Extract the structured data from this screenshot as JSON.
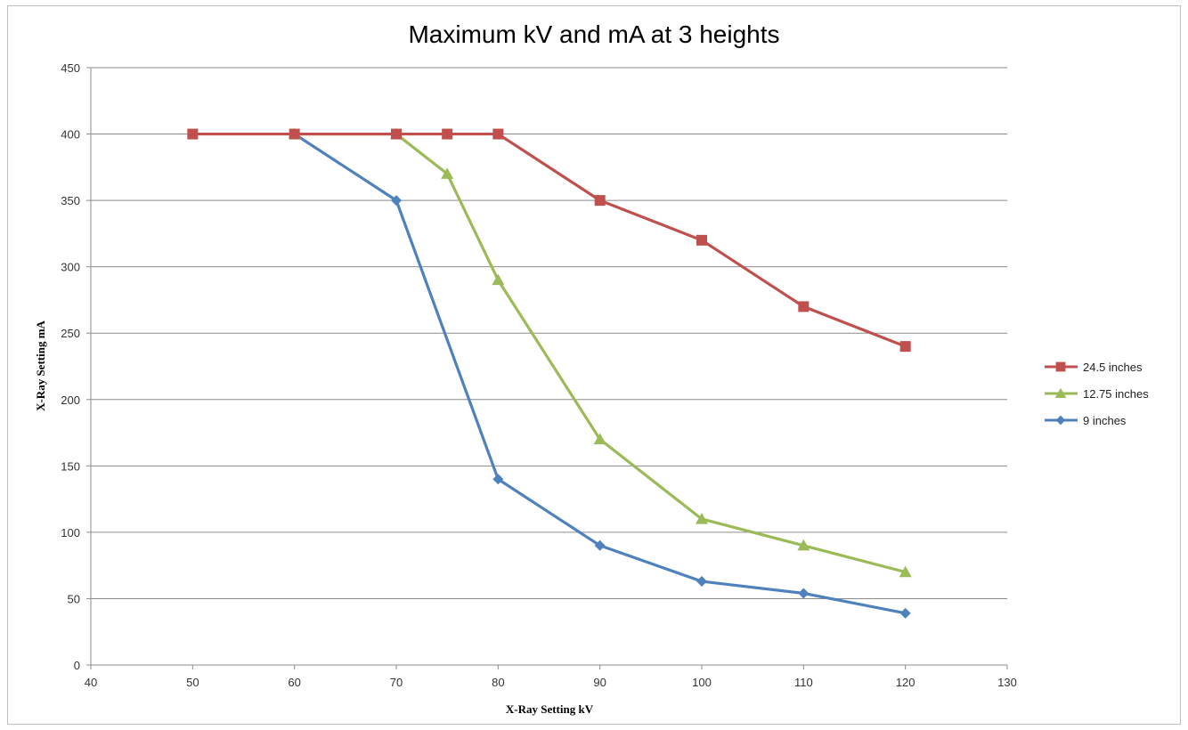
{
  "chart_data": {
    "type": "line",
    "title": "Maximum kV and mA at 3 heights",
    "xlabel": "X-Ray Setting kV",
    "ylabel": "X-Ray Setting mA",
    "xlim": [
      40,
      130
    ],
    "ylim": [
      0,
      450
    ],
    "x_ticks": [
      40,
      50,
      60,
      70,
      80,
      90,
      100,
      110,
      120,
      130
    ],
    "y_ticks": [
      0,
      50,
      100,
      150,
      200,
      250,
      300,
      350,
      400,
      450
    ],
    "grid": "horizontal",
    "legend_position": "right",
    "series": [
      {
        "name": "24.5 inches",
        "color": "#c0504d",
        "marker": "square",
        "x": [
          50,
          60,
          70,
          75,
          80,
          90,
          100,
          110,
          120
        ],
        "y": [
          400,
          400,
          400,
          400,
          400,
          350,
          320,
          270,
          240
        ]
      },
      {
        "name": "12.75 inches",
        "color": "#9bbb59",
        "marker": "triangle",
        "x": [
          60,
          70,
          75,
          80,
          90,
          100,
          110,
          120
        ],
        "y": [
          400,
          400,
          370,
          290,
          170,
          110,
          90,
          70
        ]
      },
      {
        "name": "9 inches",
        "color": "#4f81bd",
        "marker": "diamond",
        "x": [
          60,
          70,
          80,
          90,
          100,
          110,
          120
        ],
        "y": [
          400,
          350,
          140,
          90,
          63,
          54,
          39
        ]
      }
    ]
  }
}
